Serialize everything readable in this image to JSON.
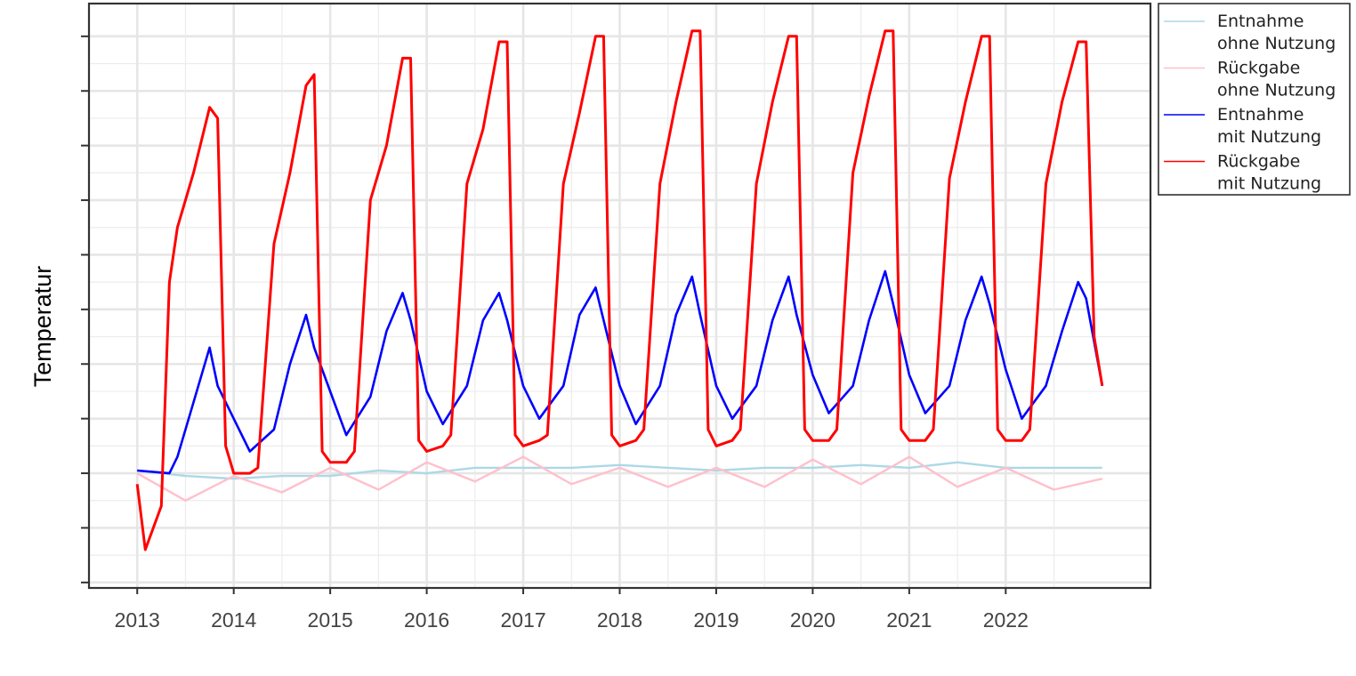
{
  "chart_data": {
    "type": "line",
    "title": "",
    "xlabel": "",
    "ylabel": "Temperatur",
    "x_tick_labels": [
      "2013",
      "2014",
      "2015",
      "2016",
      "2017",
      "2018",
      "2019",
      "2020",
      "2021",
      "2022"
    ],
    "xlim": [
      "2012-07",
      "2023-07"
    ],
    "y_tick_labels_shown": false,
    "ylim": [
      -2.1,
      8.6
    ],
    "grid": true,
    "legend_position": "right-top",
    "series": [
      {
        "name": "Entnahme\nohne Nutzung",
        "color": "#add8e6",
        "x": [
          "2013-01",
          "2013-07",
          "2014-01",
          "2014-07",
          "2015-01",
          "2015-07",
          "2016-01",
          "2016-07",
          "2017-01",
          "2017-07",
          "2018-01",
          "2018-07",
          "2019-01",
          "2019-07",
          "2020-01",
          "2020-07",
          "2021-01",
          "2021-07",
          "2022-01",
          "2022-07",
          "2023-01"
        ],
        "values": [
          0.05,
          -0.05,
          -0.1,
          -0.05,
          -0.05,
          0.05,
          0.0,
          0.1,
          0.1,
          0.1,
          0.15,
          0.1,
          0.05,
          0.1,
          0.1,
          0.15,
          0.1,
          0.2,
          0.1,
          0.1,
          0.1
        ]
      },
      {
        "name": "Rückgabe\nohne Nutzung",
        "color": "#ffc0cb",
        "x": [
          "2013-01",
          "2013-07",
          "2014-01",
          "2014-07",
          "2015-01",
          "2015-07",
          "2016-01",
          "2016-07",
          "2017-01",
          "2017-07",
          "2018-01",
          "2018-07",
          "2019-01",
          "2019-07",
          "2020-01",
          "2020-07",
          "2021-01",
          "2021-07",
          "2022-01",
          "2022-07",
          "2023-01"
        ],
        "values": [
          0.0,
          -0.5,
          -0.05,
          -0.35,
          0.1,
          -0.3,
          0.2,
          -0.15,
          0.3,
          -0.2,
          0.1,
          -0.25,
          0.1,
          -0.25,
          0.25,
          -0.2,
          0.3,
          -0.25,
          0.1,
          -0.3,
          -0.1
        ]
      },
      {
        "name": "Entnahme\nmit Nutzung",
        "color": "#0000ff",
        "x": [
          "2013-01",
          "2013-05",
          "2013-06",
          "2013-08",
          "2013-10",
          "2013-11",
          "2014-01",
          "2014-03",
          "2014-06",
          "2014-08",
          "2014-10",
          "2014-11",
          "2015-01",
          "2015-03",
          "2015-06",
          "2015-08",
          "2015-10",
          "2015-11",
          "2016-01",
          "2016-03",
          "2016-06",
          "2016-08",
          "2016-10",
          "2016-11",
          "2017-01",
          "2017-03",
          "2017-06",
          "2017-08",
          "2017-10",
          "2017-11",
          "2018-01",
          "2018-03",
          "2018-06",
          "2018-08",
          "2018-10",
          "2018-11",
          "2019-01",
          "2019-03",
          "2019-06",
          "2019-08",
          "2019-10",
          "2019-11",
          "2020-01",
          "2020-03",
          "2020-06",
          "2020-08",
          "2020-10",
          "2020-11",
          "2021-01",
          "2021-03",
          "2021-06",
          "2021-08",
          "2021-10",
          "2021-11",
          "2022-01",
          "2022-03",
          "2022-06",
          "2022-08",
          "2022-10",
          "2022-11",
          "2023-01"
        ],
        "values": [
          0.05,
          0.0,
          0.3,
          1.3,
          2.3,
          1.6,
          1.0,
          0.4,
          0.8,
          2.0,
          2.9,
          2.3,
          1.5,
          0.7,
          1.4,
          2.6,
          3.3,
          2.8,
          1.5,
          0.9,
          1.6,
          2.8,
          3.3,
          2.8,
          1.6,
          1.0,
          1.6,
          2.9,
          3.4,
          2.8,
          1.6,
          0.9,
          1.6,
          2.9,
          3.6,
          2.9,
          1.6,
          1.0,
          1.6,
          2.8,
          3.6,
          2.9,
          1.8,
          1.1,
          1.6,
          2.8,
          3.7,
          3.1,
          1.8,
          1.1,
          1.6,
          2.8,
          3.6,
          3.1,
          1.9,
          1.0,
          1.6,
          2.6,
          3.5,
          3.2,
          1.6
        ]
      },
      {
        "name": "Rückgabe\nmit Nutzung",
        "color": "#ff0000",
        "x": [
          "2013-01",
          "2013-02",
          "2013-04",
          "2013-05",
          "2013-06",
          "2013-08",
          "2013-10",
          "2013-11",
          "2013-12",
          "2014-01",
          "2014-03",
          "2014-04",
          "2014-06",
          "2014-08",
          "2014-10",
          "2014-11",
          "2014-12",
          "2015-01",
          "2015-03",
          "2015-04",
          "2015-06",
          "2015-08",
          "2015-10",
          "2015-11",
          "2015-12",
          "2016-01",
          "2016-03",
          "2016-04",
          "2016-06",
          "2016-08",
          "2016-10",
          "2016-11",
          "2016-12",
          "2017-01",
          "2017-03",
          "2017-04",
          "2017-06",
          "2017-08",
          "2017-10",
          "2017-11",
          "2017-12",
          "2018-01",
          "2018-03",
          "2018-04",
          "2018-06",
          "2018-08",
          "2018-10",
          "2018-11",
          "2018-12",
          "2019-01",
          "2019-03",
          "2019-04",
          "2019-06",
          "2019-08",
          "2019-10",
          "2019-11",
          "2019-12",
          "2020-01",
          "2020-03",
          "2020-04",
          "2020-06",
          "2020-08",
          "2020-10",
          "2020-11",
          "2020-12",
          "2021-01",
          "2021-03",
          "2021-04",
          "2021-06",
          "2021-08",
          "2021-10",
          "2021-11",
          "2021-12",
          "2022-01",
          "2022-03",
          "2022-04",
          "2022-06",
          "2022-08",
          "2022-10",
          "2022-11",
          "2022-12",
          "2023-01"
        ],
        "values": [
          -0.2,
          -1.4,
          -0.6,
          3.5,
          4.5,
          5.5,
          6.7,
          6.5,
          0.5,
          0.0,
          0.0,
          0.1,
          4.2,
          5.5,
          7.1,
          7.3,
          0.4,
          0.2,
          0.2,
          0.4,
          5.0,
          6.0,
          7.6,
          7.6,
          0.6,
          0.4,
          0.5,
          0.7,
          5.3,
          6.3,
          7.9,
          7.9,
          0.7,
          0.5,
          0.6,
          0.7,
          5.3,
          6.6,
          8.0,
          8.0,
          0.7,
          0.5,
          0.6,
          0.8,
          5.3,
          6.8,
          8.1,
          8.1,
          0.8,
          0.5,
          0.6,
          0.8,
          5.3,
          6.8,
          8.0,
          8.0,
          0.8,
          0.6,
          0.6,
          0.8,
          5.5,
          6.9,
          8.1,
          8.1,
          0.8,
          0.6,
          0.6,
          0.8,
          5.4,
          6.8,
          8.0,
          8.0,
          0.8,
          0.6,
          0.6,
          0.8,
          5.3,
          6.8,
          7.9,
          7.9,
          2.5,
          1.6
        ]
      }
    ]
  }
}
